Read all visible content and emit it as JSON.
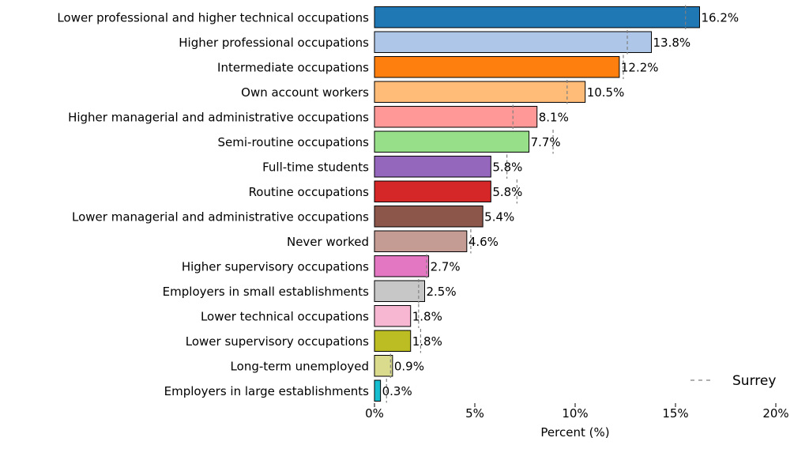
{
  "chart_data": {
    "type": "bar",
    "orientation": "horizontal",
    "xlabel": "Percent (%)",
    "xlim": [
      0,
      20
    ],
    "xticks": [
      0,
      5,
      10,
      15,
      20
    ],
    "xtick_labels": [
      "0%",
      "5%",
      "10%",
      "15%",
      "20%"
    ],
    "grid": false,
    "legend": {
      "placement": "bottom-right",
      "entries": [
        {
          "label": "Surrey",
          "style": "dashed-line"
        }
      ]
    },
    "categories": [
      "Lower professional and higher technical occupations",
      "Higher professional occupations",
      "Intermediate occupations",
      "Own account workers",
      "Higher managerial and administrative occupations",
      "Semi-routine occupations",
      "Full-time students",
      "Routine occupations",
      "Lower managerial and administrative occupations",
      "Never worked",
      "Higher supervisory occupations",
      "Employers in small establishments",
      "Lower technical occupations",
      "Lower supervisory occupations",
      "Long-term unemployed",
      "Employers in large establishments"
    ],
    "values": [
      16.2,
      13.8,
      12.2,
      10.5,
      8.1,
      7.7,
      5.8,
      5.8,
      5.4,
      4.6,
      2.7,
      2.5,
      1.8,
      1.8,
      0.9,
      0.3
    ],
    "value_labels": [
      "16.2%",
      "13.8%",
      "12.2%",
      "10.5%",
      "8.1%",
      "7.7%",
      "5.8%",
      "5.8%",
      "5.4%",
      "4.6%",
      "2.7%",
      "2.5%",
      "1.8%",
      "1.8%",
      "0.9%",
      "0.3%"
    ],
    "comparison": {
      "name": "Surrey",
      "values": [
        15.5,
        12.6,
        12.4,
        9.6,
        6.9,
        8.9,
        6.6,
        7.1,
        0,
        4.8,
        2.6,
        2.2,
        2.2,
        2.3,
        0.8,
        0.6
      ]
    },
    "bar_colors": [
      "#1f77b4",
      "#aec7e8",
      "#ff7f0e",
      "#ffbb78",
      "#ff9896",
      "#98df8a",
      "#9467bd",
      "#d62728",
      "#8c564b",
      "#c49c94",
      "#e377c2",
      "#c7c7c7",
      "#f7b6d2",
      "#bcbd22",
      "#dbdb8d",
      "#17becf"
    ]
  }
}
